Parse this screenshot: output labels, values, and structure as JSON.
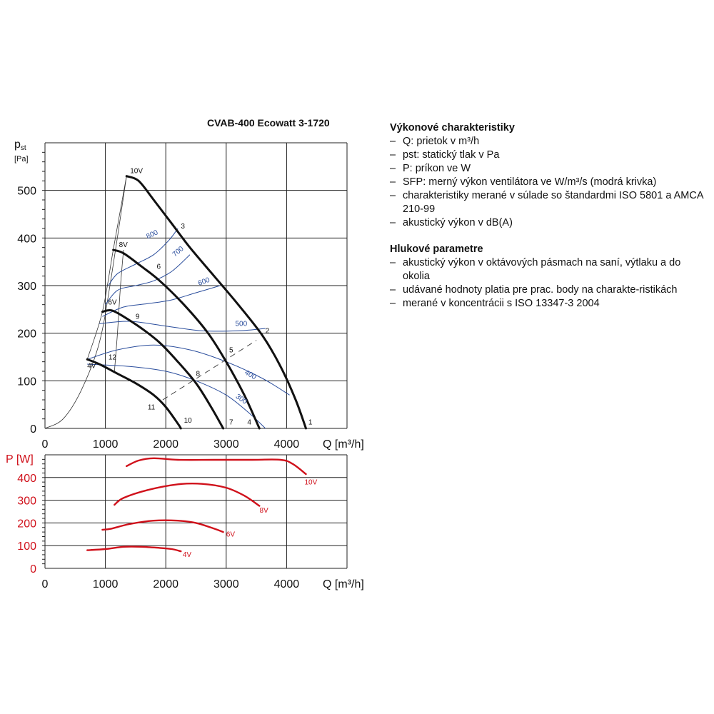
{
  "chart_data": [
    {
      "type": "line",
      "title": "CVAB-400 Ecowatt 3-1720",
      "ylabel_main": "p",
      "ylabel_sub": "st",
      "ylabel_unit": "[Pa]",
      "xlabel": "Q [m³/h]",
      "x_ticks": [
        "0",
        "1000",
        "2000",
        "3000",
        "4000"
      ],
      "y_ticks": [
        "0",
        "100",
        "200",
        "300",
        "400",
        "500"
      ],
      "xlim": [
        0,
        5000
      ],
      "ylim": [
        0,
        600
      ],
      "grid": true,
      "fan_curves": [
        {
          "name": "10V",
          "x": [
            1350,
            1550,
            1800,
            2100,
            2400,
            2800,
            3200,
            3600,
            3900,
            4150,
            4320
          ],
          "y": [
            530,
            520,
            480,
            430,
            380,
            320,
            260,
            195,
            130,
            60,
            0
          ]
        },
        {
          "name": "8V",
          "x": [
            1130,
            1300,
            1600,
            1900,
            2300,
            2700,
            3000,
            3300,
            3550
          ],
          "y": [
            375,
            368,
            340,
            310,
            260,
            200,
            140,
            70,
            0
          ]
        },
        {
          "name": "6V",
          "x": [
            950,
            1100,
            1300,
            1600,
            1900,
            2200,
            2500,
            2750,
            2950
          ],
          "y": [
            245,
            248,
            235,
            210,
            180,
            140,
            95,
            45,
            0
          ]
        },
        {
          "name": "4V",
          "x": [
            700,
            900,
            1200,
            1500,
            1800,
            2000,
            2200,
            2250
          ],
          "y": [
            145,
            135,
            115,
            95,
            70,
            45,
            10,
            0
          ]
        }
      ],
      "fan_curve_labels": [
        "10V",
        "8V",
        "6V",
        "4V"
      ],
      "sfp_curves": [
        {
          "name": "800",
          "x": [
            1050,
            1200,
            1500,
            1800,
            2050,
            2200
          ],
          "y": [
            300,
            325,
            345,
            365,
            395,
            420
          ]
        },
        {
          "name": "700",
          "x": [
            1000,
            1200,
            1500,
            1800,
            2100,
            2400
          ],
          "y": [
            260,
            290,
            300,
            310,
            330,
            365
          ]
        },
        {
          "name": "600",
          "x": [
            950,
            1300,
            1700,
            2100,
            2500,
            2900
          ],
          "y": [
            235,
            255,
            262,
            270,
            285,
            300
          ]
        },
        {
          "name": "500",
          "x": [
            900,
            1400,
            2000,
            2600,
            3200,
            3650
          ],
          "y": [
            220,
            225,
            215,
            205,
            205,
            210
          ]
        },
        {
          "name": "400",
          "x": [
            700,
            1200,
            1800,
            2400,
            3000,
            3600,
            4050
          ],
          "y": [
            145,
            165,
            175,
            165,
            140,
            105,
            70
          ]
        },
        {
          "name": "300",
          "x": [
            700,
            1400,
            2000,
            2500,
            3000,
            3400,
            3650
          ],
          "y": [
            135,
            130,
            120,
            100,
            70,
            30,
            0
          ]
        }
      ],
      "sfp_labels": [
        "800",
        "700",
        "600",
        "500",
        "400",
        "300"
      ],
      "system_curves": [
        {
          "x": [
            0,
            300,
            600,
            900,
            1100,
            1350
          ],
          "y": [
            0,
            20,
            80,
            180,
            320,
            530
          ]
        },
        {
          "x": [
            1300,
            1250,
            1200,
            1150
          ],
          "y": [
            375,
            300,
            200,
            120
          ]
        }
      ],
      "operating_points": [
        "1",
        "2",
        "3",
        "4",
        "5",
        "6",
        "7",
        "8",
        "9",
        "10",
        "11",
        "12"
      ],
      "dashed_line": {
        "x": [
          1950,
          3500
        ],
        "y": [
          60,
          185
        ]
      }
    },
    {
      "type": "line",
      "ylabel": "P [W]",
      "xlabel": "Q [m³/h]",
      "x_ticks": [
        "0",
        "1000",
        "2000",
        "3000",
        "4000"
      ],
      "y_ticks": [
        "0",
        "100",
        "200",
        "300",
        "400"
      ],
      "xlim": [
        0,
        5000
      ],
      "ylim": [
        0,
        500
      ],
      "grid": true,
      "series": [
        {
          "name": "10V",
          "x": [
            1350,
            1550,
            1800,
            2200,
            2800,
            3400,
            3900,
            4100,
            4320
          ],
          "y": [
            450,
            475,
            485,
            478,
            478,
            478,
            478,
            460,
            415
          ]
        },
        {
          "name": "8V",
          "x": [
            1150,
            1300,
            1700,
            2200,
            2600,
            3000,
            3300,
            3550
          ],
          "y": [
            280,
            310,
            345,
            370,
            372,
            355,
            320,
            275
          ]
        },
        {
          "name": "6V",
          "x": [
            950,
            1100,
            1400,
            1800,
            2200,
            2500,
            2800,
            2950
          ],
          "y": [
            170,
            175,
            195,
            210,
            210,
            200,
            175,
            160
          ]
        },
        {
          "name": "4V",
          "x": [
            700,
            1000,
            1300,
            1600,
            1900,
            2100,
            2250
          ],
          "y": [
            80,
            85,
            95,
            95,
            90,
            85,
            75
          ]
        }
      ],
      "series_labels": [
        "10V",
        "8V",
        "6V",
        "4V"
      ]
    }
  ],
  "side": {
    "heading1": "Výkonové charakteristiky",
    "items1": [
      "Q: prietok v m³/h",
      "pst: statický tlak v Pa",
      "P: príkon ve W",
      "SFP: merný výkon ventilátora ve W/m³/s (modrá krivka)",
      "charakteristiky merané v súlade so štandardmi ISO 5801 a AMCA 210-99",
      "akustický výkon v dB(A)"
    ],
    "heading2": "Hlukové parametre",
    "items2": [
      "akustický výkon v oktávových pásmach na saní, výtlaku a do okolia",
      "udávané hodnoty platia pre prac. body na charakte-ristikách",
      "merané v koncentrácii s ISO 13347-3 2004"
    ]
  }
}
